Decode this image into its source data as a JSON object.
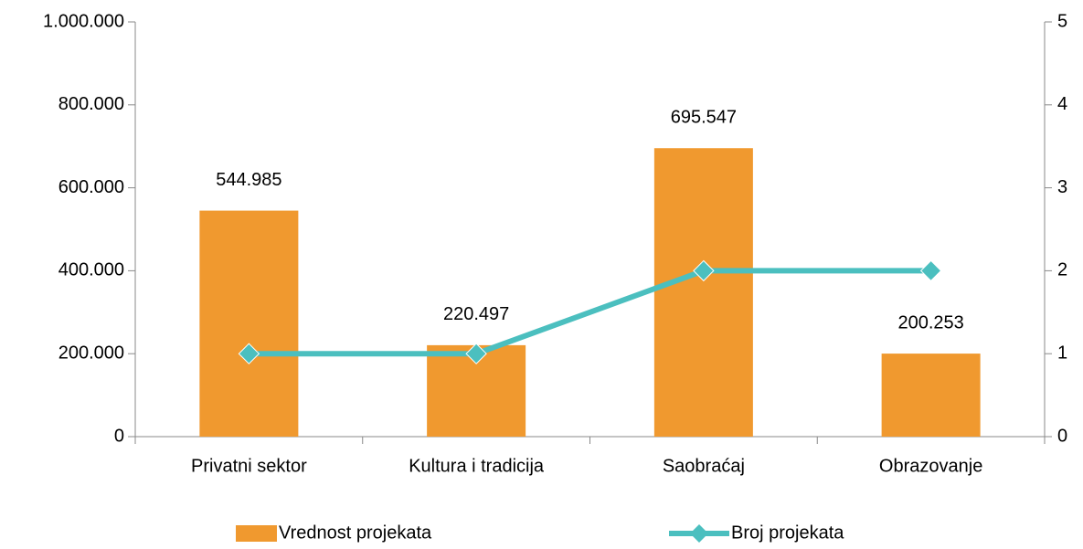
{
  "chart_data": {
    "type": "bar",
    "categories": [
      "Privatni sektor",
      "Kultura i tradicija",
      "Saobraćaj",
      "Obrazovanje"
    ],
    "series": [
      {
        "name": "Vrednost projekata",
        "type": "bar",
        "color": "#f0992f",
        "values": [
          544985,
          220497,
          695547,
          200253
        ],
        "value_labels": [
          "544.985",
          "220.497",
          "695.547",
          "200.253"
        ]
      },
      {
        "name": "Broj projekata",
        "type": "line",
        "axis": "y2",
        "color": "#4bbfbf",
        "values": [
          1,
          1,
          2,
          2
        ]
      }
    ],
    "ylim": [
      0,
      1000000
    ],
    "yticks": [
      0,
      {
        "value": 200000,
        "label": "200.000"
      },
      {
        "value": 400000,
        "label": "400.000"
      },
      {
        "value": 600000,
        "label": "600.000"
      },
      {
        "value": 800000,
        "label": "800.000"
      },
      {
        "value": 1000000,
        "label": "1.000.000"
      }
    ],
    "y2lim": [
      0,
      5
    ],
    "y2ticks": [
      0,
      1,
      2,
      3,
      4,
      5
    ],
    "legend": "bottom"
  }
}
